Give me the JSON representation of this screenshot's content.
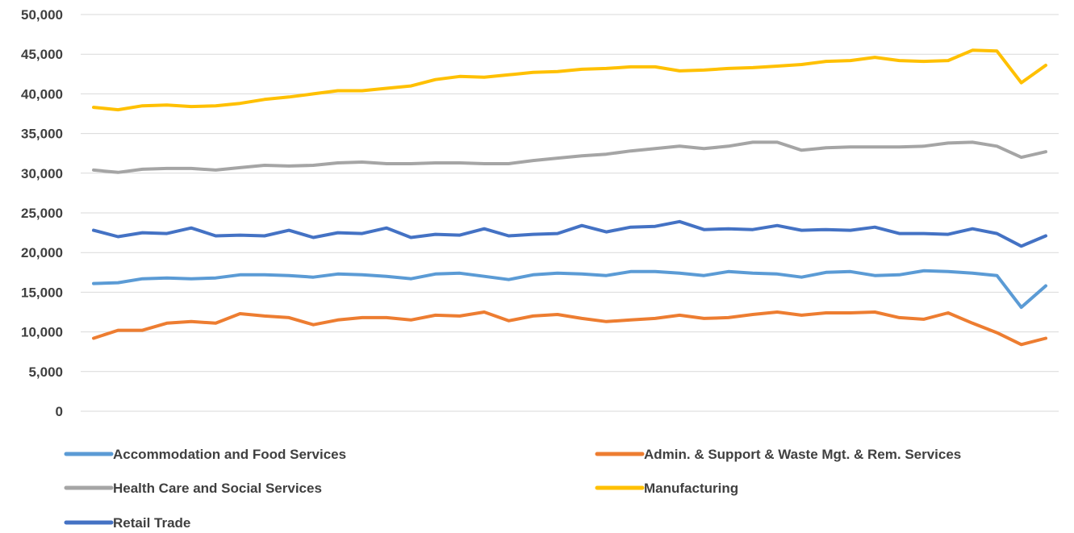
{
  "chart_data": {
    "type": "line",
    "title": "",
    "xlabel": "",
    "ylabel": "",
    "ylim": [
      0,
      50000
    ],
    "y_ticks": [
      "0",
      "5,000",
      "10,000",
      "15,000",
      "20,000",
      "25,000",
      "30,000",
      "35,000",
      "40,000",
      "45,000",
      "50,000"
    ],
    "y_tick_values": [
      0,
      5000,
      10000,
      15000,
      20000,
      25000,
      30000,
      35000,
      40000,
      45000,
      50000
    ],
    "grid": true,
    "legend_position": "bottom",
    "series": [
      {
        "name": "Accommodation and Food Services",
        "color": "#5b9bd5",
        "values": [
          16100,
          16200,
          16700,
          16800,
          16700,
          16800,
          17200,
          17200,
          17100,
          16900,
          17300,
          17200,
          17000,
          16700,
          17300,
          17400,
          17000,
          16600,
          17200,
          17400,
          17300,
          17100,
          17600,
          17600,
          17400,
          17100,
          17600,
          17400,
          17300,
          16900,
          17500,
          17600,
          17100,
          17200,
          17700,
          17600,
          17400,
          17100,
          13100,
          15800
        ]
      },
      {
        "name": "Admin. & Support & Waste Mgt. & Rem. Services",
        "color": "#ed7d31",
        "values": [
          9200,
          10200,
          10200,
          11100,
          11300,
          11100,
          12300,
          12000,
          11800,
          10900,
          11500,
          11800,
          11800,
          11500,
          12100,
          12000,
          12500,
          11400,
          12000,
          12200,
          11700,
          11300,
          11500,
          11700,
          12100,
          11700,
          11800,
          12200,
          12500,
          12100,
          12400,
          12400,
          12500,
          11800,
          11600,
          12400,
          11100,
          9900,
          8400,
          9200
        ]
      },
      {
        "name": "Health Care and Social Services",
        "color": "#a5a5a5",
        "values": [
          30400,
          30100,
          30500,
          30600,
          30600,
          30400,
          30700,
          31000,
          30900,
          31000,
          31300,
          31400,
          31200,
          31200,
          31300,
          31300,
          31200,
          31200,
          31600,
          31900,
          32200,
          32400,
          32800,
          33100,
          33400,
          33100,
          33400,
          33900,
          33900,
          32900,
          33200,
          33300,
          33300,
          33300,
          33400,
          33800,
          33900,
          33400,
          32000,
          32700
        ]
      },
      {
        "name": "Manufacturing",
        "color": "#ffc000",
        "values": [
          38300,
          38000,
          38500,
          38600,
          38400,
          38500,
          38800,
          39300,
          39600,
          40000,
          40400,
          40400,
          40700,
          41000,
          41800,
          42200,
          42100,
          42400,
          42700,
          42800,
          43100,
          43200,
          43400,
          43400,
          42900,
          43000,
          43200,
          43300,
          43500,
          43700,
          44100,
          44200,
          44600,
          44200,
          44100,
          44200,
          45500,
          45400,
          41400,
          43600
        ]
      },
      {
        "name": "Retail Trade",
        "color": "#4472c4",
        "values": [
          22800,
          22000,
          22500,
          22400,
          23100,
          22100,
          22200,
          22100,
          22800,
          21900,
          22500,
          22400,
          23100,
          21900,
          22300,
          22200,
          23000,
          22100,
          22300,
          22400,
          23400,
          22600,
          23200,
          23300,
          23900,
          22900,
          23000,
          22900,
          23400,
          22800,
          22900,
          22800,
          23200,
          22400,
          22400,
          22300,
          23000,
          22400,
          20800,
          22100
        ]
      }
    ]
  }
}
